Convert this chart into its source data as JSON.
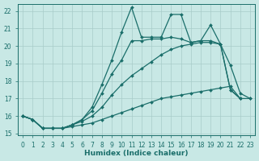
{
  "xlabel": "Humidex (Indice chaleur)",
  "xlim": [
    -0.5,
    23.5
  ],
  "ylim": [
    14.9,
    22.4
  ],
  "yticks": [
    15,
    16,
    17,
    18,
    19,
    20,
    21,
    22
  ],
  "xticks": [
    0,
    1,
    2,
    3,
    4,
    5,
    6,
    7,
    8,
    9,
    10,
    11,
    12,
    13,
    14,
    15,
    16,
    17,
    18,
    19,
    20,
    21,
    22,
    23
  ],
  "bg_color": "#c8e8e5",
  "grid_color": "#a8ccc9",
  "line_color": "#1a6e6a",
  "lines": [
    {
      "x": [
        0,
        1,
        2,
        3,
        4,
        5,
        6,
        7,
        8,
        9,
        10,
        11,
        12,
        13,
        14,
        15,
        16,
        17,
        18,
        19,
        20,
        21,
        22,
        23
      ],
      "y": [
        16.0,
        15.8,
        15.3,
        15.3,
        15.3,
        15.4,
        15.5,
        15.6,
        15.8,
        16.0,
        16.2,
        16.4,
        16.6,
        16.8,
        17.0,
        17.1,
        17.2,
        17.3,
        17.4,
        17.5,
        17.6,
        17.7,
        17.0,
        17.0
      ]
    },
    {
      "x": [
        0,
        1,
        2,
        3,
        4,
        5,
        6,
        7,
        8,
        9,
        10,
        11,
        12,
        13,
        14,
        15,
        16,
        17,
        18,
        19,
        20,
        21,
        22,
        23
      ],
      "y": [
        16.0,
        15.8,
        15.3,
        15.3,
        15.3,
        15.5,
        15.7,
        16.0,
        16.5,
        17.2,
        17.8,
        18.3,
        18.7,
        19.1,
        19.5,
        19.8,
        20.0,
        20.1,
        20.2,
        20.2,
        20.1,
        17.5,
        17.0,
        null
      ]
    },
    {
      "x": [
        0,
        1,
        2,
        3,
        4,
        5,
        6,
        7,
        8,
        9,
        10,
        11,
        12,
        13,
        14,
        15,
        16,
        17,
        18,
        19,
        20,
        21,
        22,
        23
      ],
      "y": [
        16.0,
        15.8,
        15.3,
        15.3,
        15.3,
        15.5,
        15.8,
        16.5,
        17.8,
        19.2,
        20.8,
        22.2,
        20.5,
        20.5,
        20.5,
        21.8,
        21.8,
        20.2,
        20.3,
        21.2,
        20.1,
        18.9,
        17.3,
        17.0
      ]
    },
    {
      "x": [
        0,
        1,
        2,
        3,
        4,
        5,
        6,
        7,
        8,
        9,
        10,
        11,
        12,
        13,
        14,
        15,
        16,
        17,
        18,
        19,
        20,
        21,
        22,
        23
      ],
      "y": [
        16.0,
        15.8,
        15.3,
        15.3,
        15.3,
        15.5,
        15.8,
        16.3,
        17.3,
        18.4,
        19.2,
        20.3,
        20.3,
        20.4,
        20.4,
        20.5,
        20.4,
        20.2,
        20.3,
        20.3,
        20.1,
        17.5,
        17.0,
        null
      ]
    }
  ]
}
